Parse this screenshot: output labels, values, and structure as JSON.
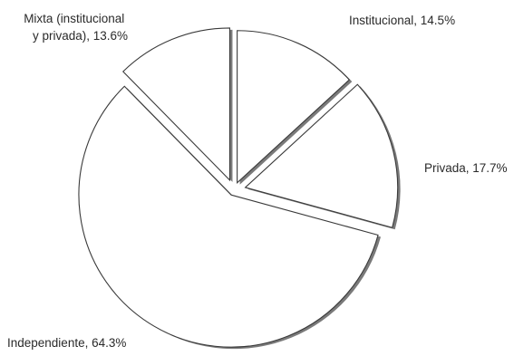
{
  "chart_data": {
    "type": "pie",
    "title": "",
    "slices": [
      {
        "label": "Institucional, 14.5%",
        "name": "Institucional",
        "value": 14.5
      },
      {
        "label": "Privada, 17.7%",
        "name": "Privada",
        "value": 17.7
      },
      {
        "label": "Independiente, 64.3%",
        "name": "Independiente",
        "value": 64.3
      },
      {
        "label_lines": [
          "Mixta (institucional",
          "y privada), 13.6%"
        ],
        "name": "Mixta (institucional y privada)",
        "value": 13.6
      }
    ],
    "exploded": true,
    "colors": {
      "fill": "#ffffff",
      "outline": "#3a3a3a",
      "shadow": "#7a7a7a"
    }
  }
}
